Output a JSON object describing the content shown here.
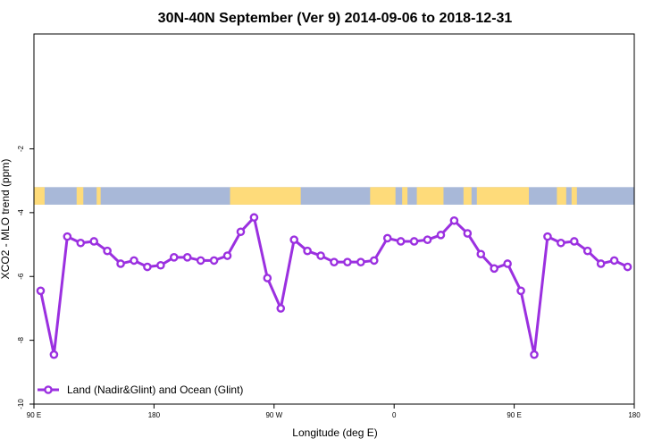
{
  "chart_data": {
    "type": "line",
    "title": "30N-40N September (Ver 9)   2014-09-06 to 2018-12-31",
    "xlabel": "Longitude (deg E)",
    "ylabel": "XCO2 - MLO trend (ppm)",
    "x_ticks": [
      {
        "value": 90,
        "label": "90 E"
      },
      {
        "value": 180,
        "label": "180"
      },
      {
        "value": 270,
        "label": "90 W"
      },
      {
        "value": 360,
        "label": "0"
      },
      {
        "value": 450,
        "label": "90 E"
      },
      {
        "value": 540,
        "label": "180"
      }
    ],
    "y_ticks": [
      {
        "value": -2,
        "label": "-2"
      },
      {
        "value": -4,
        "label": "-4"
      },
      {
        "value": -6,
        "label": "-6"
      },
      {
        "value": -8,
        "label": "-8"
      },
      {
        "value": -10,
        "label": "-10"
      }
    ],
    "xlim": [
      90,
      540
    ],
    "ylim": [
      -10,
      1.6
    ],
    "grid": false,
    "legend_position": "bottom-left",
    "land_ocean_band": {
      "y_range": [
        -3.75,
        -3.2
      ],
      "ocean_color": "#a8b8d8",
      "land_color": "#fedb7a",
      "land_intervals": [
        [
          90,
          98
        ],
        [
          122,
          127
        ],
        [
          137,
          140
        ],
        [
          237,
          290
        ],
        [
          342,
          361
        ],
        [
          366,
          370
        ],
        [
          377,
          397
        ],
        [
          412,
          418
        ],
        [
          422,
          461
        ],
        [
          482,
          489
        ],
        [
          493,
          497
        ]
      ]
    },
    "series": [
      {
        "name": "Land (Nadir&Glint) and Ocean (Glint)",
        "color": "#9b30e0",
        "x": [
          95,
          105,
          115,
          125,
          135,
          145,
          155,
          165,
          175,
          185,
          195,
          205,
          215,
          225,
          235,
          245,
          255,
          265,
          275,
          285,
          295,
          305,
          315,
          325,
          335,
          345,
          355,
          365,
          375,
          385,
          395,
          405,
          415,
          425,
          435,
          445,
          455,
          465,
          475,
          485,
          495,
          505,
          515,
          525,
          535
        ],
        "values": [
          -6.45,
          -8.45,
          -4.75,
          -4.95,
          -4.9,
          -5.2,
          -5.6,
          -5.5,
          -5.7,
          -5.65,
          -5.4,
          -5.4,
          -5.5,
          -5.5,
          -5.35,
          -4.6,
          -4.15,
          -6.05,
          -7.0,
          -4.85,
          -5.2,
          -5.35,
          -5.55,
          -5.55,
          -5.55,
          -5.5,
          -4.8,
          -4.9,
          -4.9,
          -4.85,
          -4.7,
          -4.25,
          -4.65,
          -5.3,
          -5.75,
          -5.6,
          -6.45,
          -8.45,
          -4.75,
          -4.95,
          -4.9,
          -5.2,
          -5.6,
          -5.5,
          -5.7
        ]
      }
    ]
  }
}
